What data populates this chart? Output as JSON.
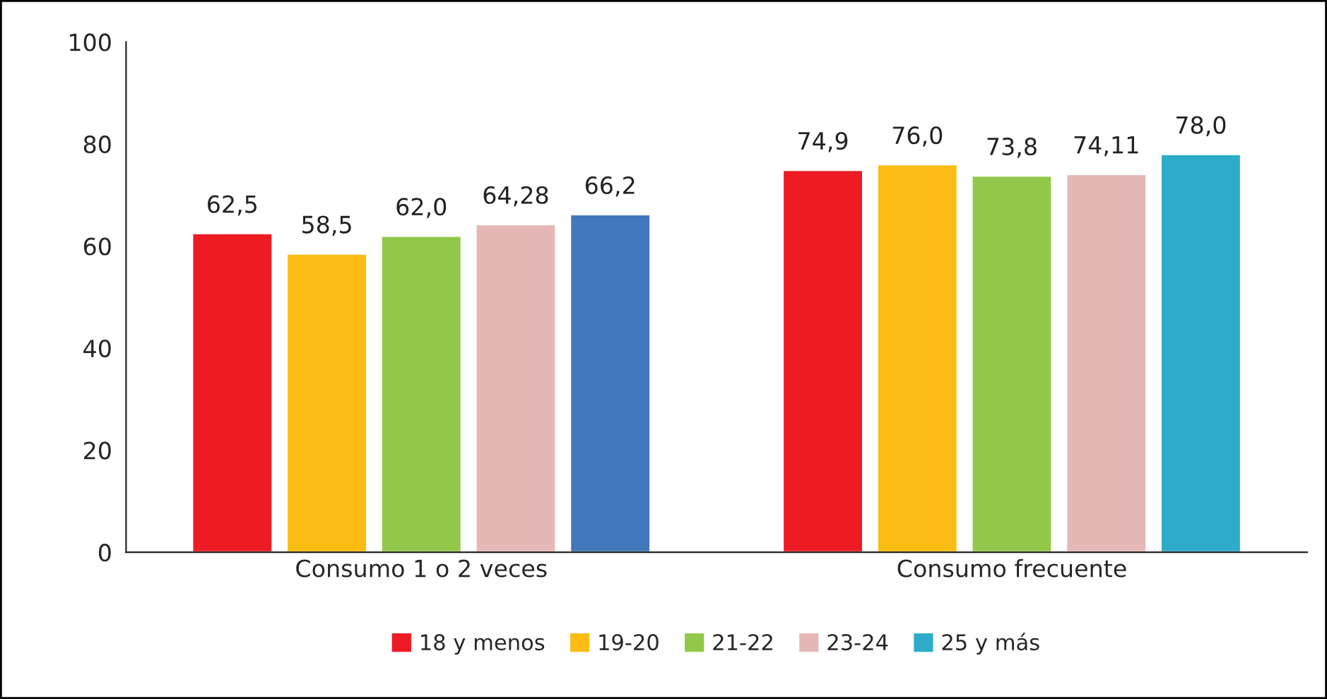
{
  "chart_data": {
    "type": "bar",
    "categories": [
      "Consumo 1 o 2 veces",
      "Consumo frecuente"
    ],
    "series": [
      {
        "name": "18 y menos",
        "color": "#ed1c24",
        "values": [
          62.5,
          74.9
        ],
        "value_labels": [
          "62,5",
          "74,9"
        ]
      },
      {
        "name": "19-20",
        "color": "#fbbc13",
        "values": [
          58.5,
          76.0
        ],
        "value_labels": [
          "58,5",
          "76,0"
        ]
      },
      {
        "name": "21-22",
        "color": "#92c84a",
        "values": [
          62.0,
          73.8
        ],
        "value_labels": [
          "62,0",
          "73,8"
        ]
      },
      {
        "name": "23-24",
        "color": "#e5b8b7",
        "values": [
          64.28,
          74.11
        ],
        "value_labels": [
          "64,28",
          "74,11"
        ]
      },
      {
        "name": "25 y más",
        "color": "#2eabc9",
        "colors": [
          "#4177bb",
          "#2eabc9"
        ],
        "values": [
          66.2,
          78.0
        ],
        "value_labels": [
          "66,2",
          "78,0"
        ]
      }
    ],
    "ylim": [
      0,
      100
    ],
    "yticks": [
      0,
      20,
      40,
      60,
      80,
      100
    ],
    "grid": false,
    "legend": "bottom"
  }
}
